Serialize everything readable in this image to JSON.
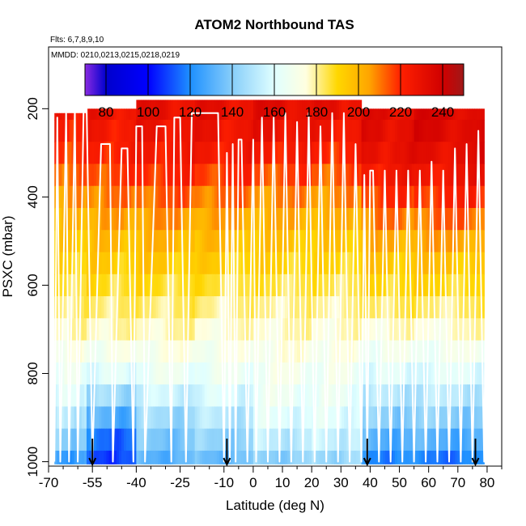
{
  "chart_data": {
    "type": "heatmap",
    "title": "ATOM2 Northbound TAS",
    "subtitle": "Flts: 6,7,8,9,10",
    "annotation": "MMDD: 0210,0213,0215,0218,0219",
    "xlabel": "Latitude (deg N)",
    "ylabel": "PSXC (mbar)",
    "xlim": [
      -70,
      85
    ],
    "ylim": [
      1010,
      60
    ],
    "x_ticks": [
      -70,
      -55,
      -40,
      -25,
      -10,
      0,
      10,
      20,
      30,
      40,
      50,
      60,
      70,
      80
    ],
    "x_tick_labels": [
      "-70",
      "-55",
      "-40",
      "-25",
      "-10",
      "0",
      "10",
      "20",
      "30",
      "40",
      "50",
      "60",
      "70",
      "80"
    ],
    "x_minor_ticks": [
      -65,
      -60,
      -50,
      -45,
      -35,
      -30,
      -20,
      -15,
      -5,
      5,
      15,
      25,
      35,
      45,
      55,
      65,
      75,
      85
    ],
    "y_ticks": [
      200,
      400,
      600,
      800,
      1000
    ],
    "y_tick_labels": [
      "200",
      "400",
      "600",
      "800",
      "1000"
    ],
    "colorbar": {
      "vmin": 70,
      "vmax": 250,
      "ticks": [
        80,
        100,
        120,
        140,
        160,
        180,
        200,
        220,
        240
      ],
      "tick_labels": [
        "80",
        "100",
        "120",
        "140",
        "160",
        "180",
        "200",
        "220",
        "240"
      ],
      "stops": [
        {
          "v": 70,
          "c": "#8a2be2"
        },
        {
          "v": 80,
          "c": "#0000cd"
        },
        {
          "v": 100,
          "c": "#0000ff"
        },
        {
          "v": 120,
          "c": "#1e90ff"
        },
        {
          "v": 140,
          "c": "#87cefa"
        },
        {
          "v": 160,
          "c": "#e0ffff"
        },
        {
          "v": 175,
          "c": "#ffffe0"
        },
        {
          "v": 190,
          "c": "#ffd700"
        },
        {
          "v": 205,
          "c": "#ffa500"
        },
        {
          "v": 220,
          "c": "#ff2000"
        },
        {
          "v": 240,
          "c": "#d00000"
        },
        {
          "v": 250,
          "c": "#a01818"
        }
      ]
    },
    "pressure_levels": [
      200,
      250,
      300,
      350,
      400,
      450,
      500,
      550,
      600,
      650,
      700,
      750,
      800,
      850,
      900,
      950,
      1000
    ],
    "segments": [
      {
        "lat": [
          -68,
          -57
        ],
        "top": 210,
        "values": [
          225,
          222,
          218,
          212,
          206,
          200,
          195,
          190,
          186,
          182,
          178,
          172,
          166,
          160,
          150,
          140,
          125
        ]
      },
      {
        "lat": [
          -57,
          -40
        ],
        "top": 200,
        "values": [
          228,
          225,
          222,
          216,
          210,
          204,
          198,
          193,
          188,
          183,
          178,
          170,
          160,
          145,
          130,
          115,
          110
        ]
      },
      {
        "lat": [
          -40,
          -20
        ],
        "top": 180,
        "values": [
          230,
          228,
          225,
          220,
          213,
          206,
          200,
          194,
          188,
          183,
          178,
          172,
          165,
          155,
          145,
          138,
          132
        ]
      },
      {
        "lat": [
          -20,
          0
        ],
        "top": 180,
        "values": [
          230,
          228,
          225,
          218,
          211,
          204,
          198,
          192,
          186,
          181,
          176,
          171,
          165,
          158,
          150,
          142,
          135
        ]
      },
      {
        "lat": [
          0,
          20
        ],
        "top": 180,
        "values": [
          232,
          229,
          224,
          216,
          208,
          202,
          196,
          191,
          186,
          181,
          177,
          173,
          169,
          165,
          160,
          152,
          142
        ]
      },
      {
        "lat": [
          20,
          37
        ],
        "top": 180,
        "values": [
          230,
          226,
          221,
          214,
          207,
          201,
          195,
          190,
          185,
          180,
          176,
          172,
          168,
          164,
          160,
          154,
          145
        ]
      },
      {
        "lat": [
          37,
          55
        ],
        "top": 200,
        "values": [
          232,
          232,
          230,
          225,
          218,
          210,
          202,
          195,
          190,
          184,
          176,
          168,
          160,
          150,
          140,
          130,
          120
        ]
      },
      {
        "lat": [
          55,
          79
        ],
        "top": 200,
        "values": [
          235,
          235,
          232,
          227,
          220,
          212,
          204,
          196,
          190,
          183,
          176,
          168,
          160,
          150,
          140,
          130,
          118
        ]
      }
    ],
    "flight_profile": {
      "lat": [
        -68,
        -67,
        -66,
        -64,
        -63,
        -61,
        -60,
        -58,
        -57,
        -55,
        -52,
        -49,
        -48,
        -45,
        -43,
        -41,
        -40,
        -38,
        -37,
        -33,
        -30,
        -28,
        -27,
        -25,
        -23,
        -21,
        -18,
        -15,
        -12,
        -10,
        -9,
        -8,
        -7,
        -6,
        -5,
        -4,
        -2,
        0,
        1,
        3,
        5,
        7,
        9,
        11,
        13,
        15,
        17,
        19,
        21,
        23,
        25,
        27,
        29,
        31,
        33,
        35,
        37,
        38,
        39,
        40,
        41,
        43,
        45,
        47,
        49,
        51,
        53,
        55,
        57,
        59,
        61,
        63,
        65,
        67,
        69,
        71,
        73,
        75,
        77,
        79,
        80
      ],
      "psxc": [
        1000,
        220,
        1000,
        210,
        1000,
        200,
        1000,
        190,
        190,
        1000,
        280,
        280,
        1000,
        290,
        290,
        1000,
        240,
        240,
        1000,
        240,
        240,
        1000,
        220,
        220,
        1000,
        210,
        210,
        210,
        210,
        1000,
        300,
        1000,
        280,
        1000,
        270,
        270,
        1000,
        270,
        1000,
        220,
        1000,
        220,
        1000,
        210,
        1000,
        230,
        1000,
        210,
        1000,
        240,
        1000,
        210,
        1000,
        210,
        1000,
        280,
        1000,
        350,
        1000,
        340,
        340,
        1000,
        340,
        1000,
        340,
        1000,
        340,
        1000,
        340,
        1000,
        320,
        1000,
        340,
        1000,
        290,
        1000,
        280,
        1000,
        250,
        1000,
        270
      ]
    },
    "arrows_at_lat": [
      -55,
      -9,
      39,
      76
    ]
  }
}
